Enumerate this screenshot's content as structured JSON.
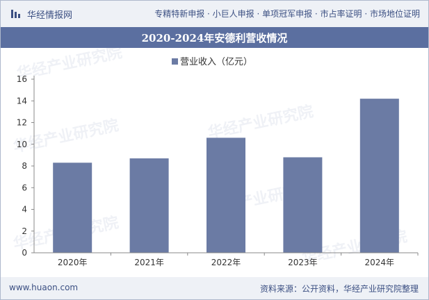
{
  "header": {
    "logo_text": "华经情报网",
    "nav_links": "专精特新申报 · 小巨人申报 · 单项冠军申报 · 市占率证明 · 市场地位证明"
  },
  "footer": {
    "url": "www.huaon.com",
    "source": "资料来源：公开资料，华经产业研究院整理"
  },
  "watermark": "华经产业研究院",
  "colors": {
    "bar": "#6b7ba4",
    "title_bg": "#5b6fa0",
    "axis_text": "#333333"
  },
  "chart_data": {
    "type": "bar",
    "title": "2020-2024年安德利营收情况",
    "legend": "营业收入（亿元）",
    "legend_position": "top-center",
    "categories": [
      "2020年",
      "2021年",
      "2022年",
      "2023年",
      "2024年"
    ],
    "values": [
      8.3,
      8.7,
      10.6,
      8.8,
      14.2
    ],
    "ylim": [
      0,
      16
    ],
    "yticks": [
      0,
      2,
      4,
      6,
      8,
      10,
      12,
      14,
      16
    ],
    "xlabel": "",
    "ylabel": "",
    "grid": false
  }
}
